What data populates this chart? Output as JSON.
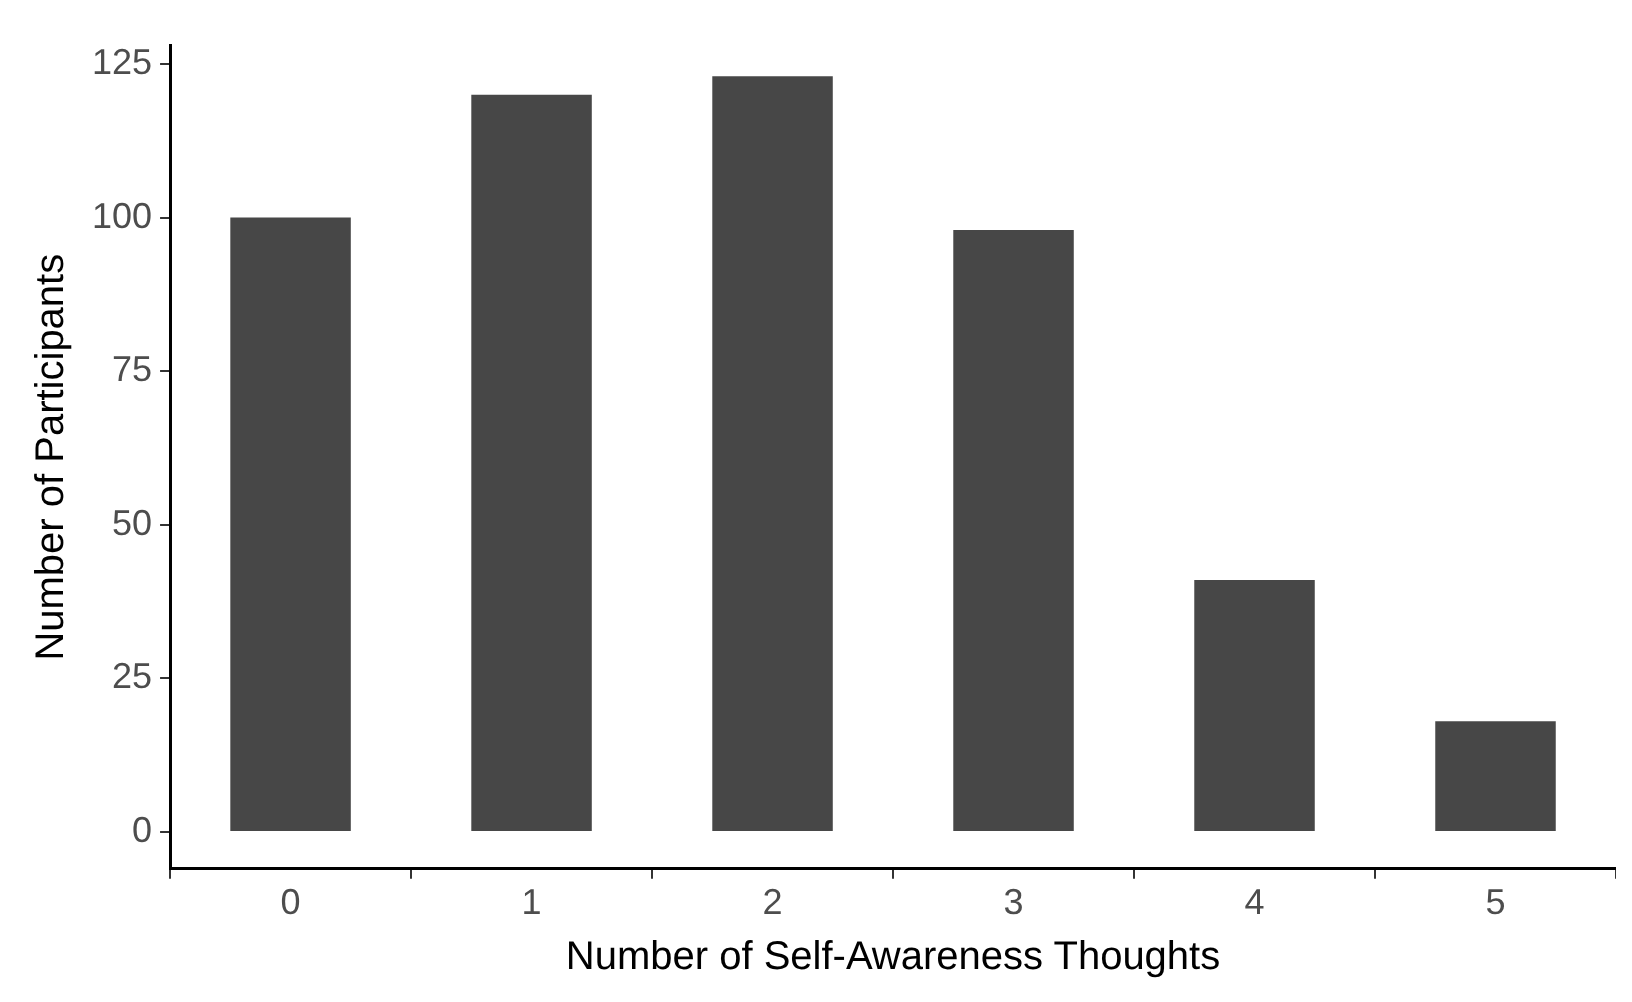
{
  "chart_data": {
    "type": "bar",
    "xlabel": "Number of Self-Awareness Thoughts",
    "ylabel": "Number of Participants",
    "categories": [
      "0",
      "1",
      "2",
      "3",
      "4",
      "5"
    ],
    "values": [
      100,
      120,
      123,
      98,
      41,
      18
    ],
    "color": "#474747",
    "ylim": [
      -6,
      128
    ],
    "yticks": [
      0,
      25,
      50,
      75,
      100,
      125
    ],
    "grid": false,
    "legend": false
  }
}
